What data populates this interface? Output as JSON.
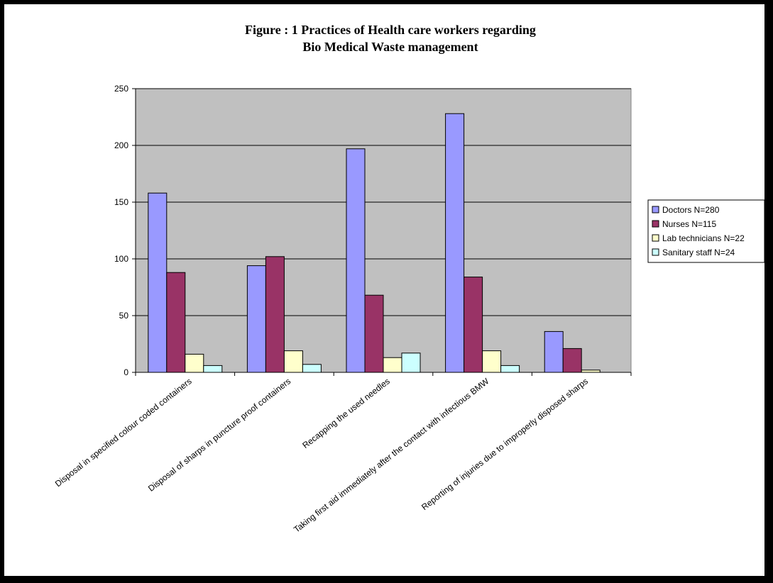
{
  "chart_data": {
    "type": "bar",
    "title": "Figure : 1 Practices of Health care workers regarding",
    "subtitle": "Bio Medical Waste management",
    "xlabel": "",
    "ylabel": "",
    "ylim": [
      0,
      250
    ],
    "yticks": [
      "0",
      "50",
      "100",
      "150",
      "200",
      "250"
    ],
    "grid": true,
    "legend_position": "right",
    "categories": [
      "Disposal in specified colour coded containers",
      "Disposal of sharps in puncture proof containers",
      "Recapping the used needles",
      "Taking first aid immediately after the contact with infectious BMW",
      "Reporting of injuries due to improperly disposed sharps"
    ],
    "series": [
      {
        "name": "Doctors N=280",
        "color": "#9999ff",
        "values": [
          158,
          94,
          197,
          228,
          36
        ]
      },
      {
        "name": "Nurses N=115",
        "color": "#993366",
        "values": [
          88,
          102,
          68,
          84,
          21
        ]
      },
      {
        "name": "Lab technicians N=22",
        "color": "#ffffcc",
        "values": [
          16,
          19,
          13,
          19,
          2
        ]
      },
      {
        "name": "Sanitary staff N=24",
        "color": "#ccffff",
        "values": [
          6,
          7,
          17,
          6,
          0
        ]
      }
    ],
    "plot_background": "#c0c0c0"
  }
}
